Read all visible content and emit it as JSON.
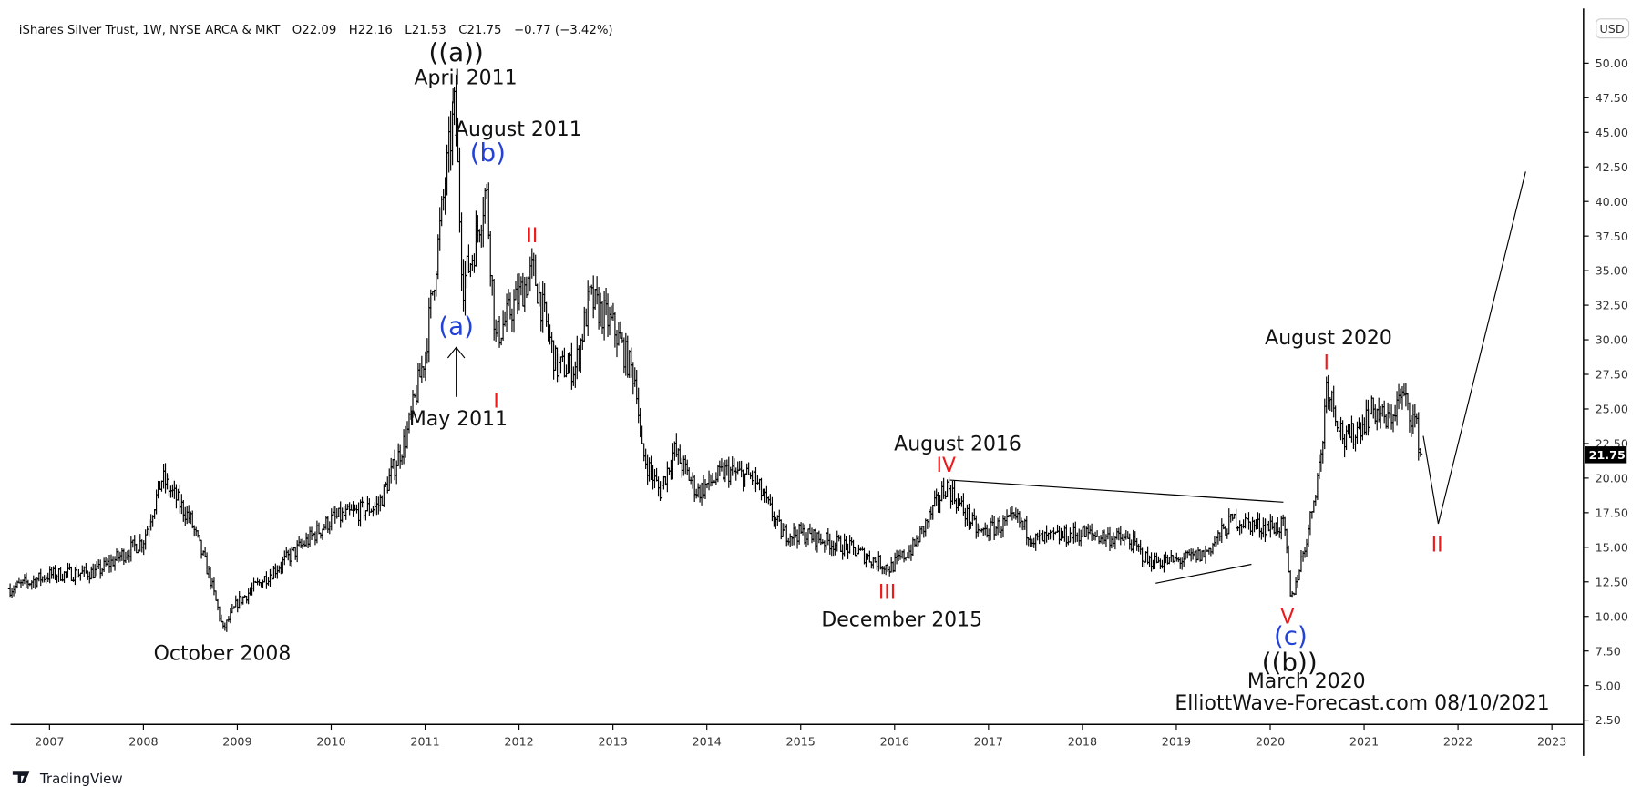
{
  "header": {
    "title": "iShares Silver Trust, 1W, NYSE ARCA & MKT",
    "open": "O22.09",
    "high": "H22.16",
    "low": "L21.53",
    "close": "C21.75",
    "change": "−0.77 (−3.42%)"
  },
  "currency_button": "USD",
  "last_price_label": "21.75",
  "branding": {
    "logo_text": "TradingView",
    "watermark": "ElliottWave-Forecast.com 08/10/2021"
  },
  "annotations": {
    "a_double": "((a))",
    "april_2011": "April 2011",
    "august_2011": "August 2011",
    "b_blue": "(b)",
    "ii_2012": "II",
    "a_blue": "(a)",
    "may_2011": "May 2011",
    "i_2011": "I",
    "october_2008": "October 2008",
    "august_2016": "August 2016",
    "iv": "IV",
    "iii": "III",
    "december_2015": "December  2015",
    "august_2020": "August 2020",
    "i_2020": "I",
    "v": "V",
    "c_blue": "(c)",
    "b_double": "((b))",
    "march_2020": "March 2020",
    "ii_projection": "II"
  },
  "colors": {
    "wave_blue": "#2443d6",
    "wave_red": "#f01818",
    "bars": "#000000",
    "price_tag_bg": "#000000"
  },
  "chart_data": {
    "type": "ohlc",
    "timeframe": "1W",
    "x_unit": "year",
    "xlim": [
      2006.58,
      2023.3
    ],
    "ylim": [
      1.5,
      52.5
    ],
    "y_scale": "linear",
    "grid": false,
    "x_ticks": [
      "2007",
      "2008",
      "2009",
      "2010",
      "2011",
      "2012",
      "2013",
      "2014",
      "2015",
      "2016",
      "2017",
      "2018",
      "2019",
      "2020",
      "2021",
      "2022",
      "2023"
    ],
    "y_ticks": [
      "50.00",
      "47.50",
      "45.00",
      "42.50",
      "40.00",
      "37.50",
      "35.00",
      "32.50",
      "30.00",
      "27.50",
      "25.00",
      "22.50",
      "20.00",
      "17.50",
      "15.00",
      "12.50",
      "10.00",
      "7.50",
      "5.00",
      "2.50"
    ],
    "price_path": [
      [
        2006.58,
        12
      ],
      [
        2007.0,
        13
      ],
      [
        2007.5,
        13.2
      ],
      [
        2008.0,
        15.5
      ],
      [
        2008.2,
        20
      ],
      [
        2008.5,
        17
      ],
      [
        2008.7,
        13
      ],
      [
        2008.85,
        9
      ],
      [
        2009.0,
        11
      ],
      [
        2009.5,
        14
      ],
      [
        2010.0,
        17
      ],
      [
        2010.5,
        18
      ],
      [
        2010.8,
        23
      ],
      [
        2011.0,
        29
      ],
      [
        2011.28,
        45
      ],
      [
        2011.32,
        47
      ],
      [
        2011.4,
        34
      ],
      [
        2011.5,
        36
      ],
      [
        2011.65,
        41
      ],
      [
        2011.75,
        30
      ],
      [
        2011.9,
        32
      ],
      [
        2012.15,
        35
      ],
      [
        2012.4,
        28
      ],
      [
        2012.6,
        28
      ],
      [
        2012.75,
        33
      ],
      [
        2013.0,
        31
      ],
      [
        2013.25,
        27
      ],
      [
        2013.3,
        22
      ],
      [
        2013.5,
        19
      ],
      [
        2013.65,
        22
      ],
      [
        2013.9,
        19
      ],
      [
        2014.2,
        20.5
      ],
      [
        2014.5,
        20
      ],
      [
        2014.8,
        16
      ],
      [
        2015.0,
        16
      ],
      [
        2015.5,
        15
      ],
      [
        2015.95,
        13.5
      ],
      [
        2016.2,
        15
      ],
      [
        2016.55,
        19.5
      ],
      [
        2016.9,
        16
      ],
      [
        2017.3,
        17
      ],
      [
        2017.5,
        15.5
      ],
      [
        2018.0,
        16
      ],
      [
        2018.5,
        15.5
      ],
      [
        2018.7,
        14
      ],
      [
        2019.0,
        14
      ],
      [
        2019.3,
        14.5
      ],
      [
        2019.6,
        17
      ],
      [
        2019.9,
        16.5
      ],
      [
        2020.15,
        16.5
      ],
      [
        2020.22,
        11
      ],
      [
        2020.4,
        16
      ],
      [
        2020.55,
        22
      ],
      [
        2020.6,
        27
      ],
      [
        2020.8,
        22.5
      ],
      [
        2021.1,
        25
      ],
      [
        2021.25,
        24
      ],
      [
        2021.4,
        26
      ],
      [
        2021.55,
        24
      ],
      [
        2021.6,
        21.75
      ]
    ],
    "last_bar": {
      "open": 22.09,
      "high": 22.16,
      "low": 21.53,
      "close": 21.75
    },
    "trendlines": [
      [
        [
          2016.59,
          19.86
        ],
        [
          2020.14,
          18.26
        ]
      ],
      [
        [
          2018.78,
          12.4
        ],
        [
          2019.8,
          13.77
        ]
      ]
    ],
    "projection": [
      [
        2021.63,
        23.05
      ],
      [
        2021.79,
        16.7
      ],
      [
        2022.72,
        42.16
      ]
    ]
  }
}
